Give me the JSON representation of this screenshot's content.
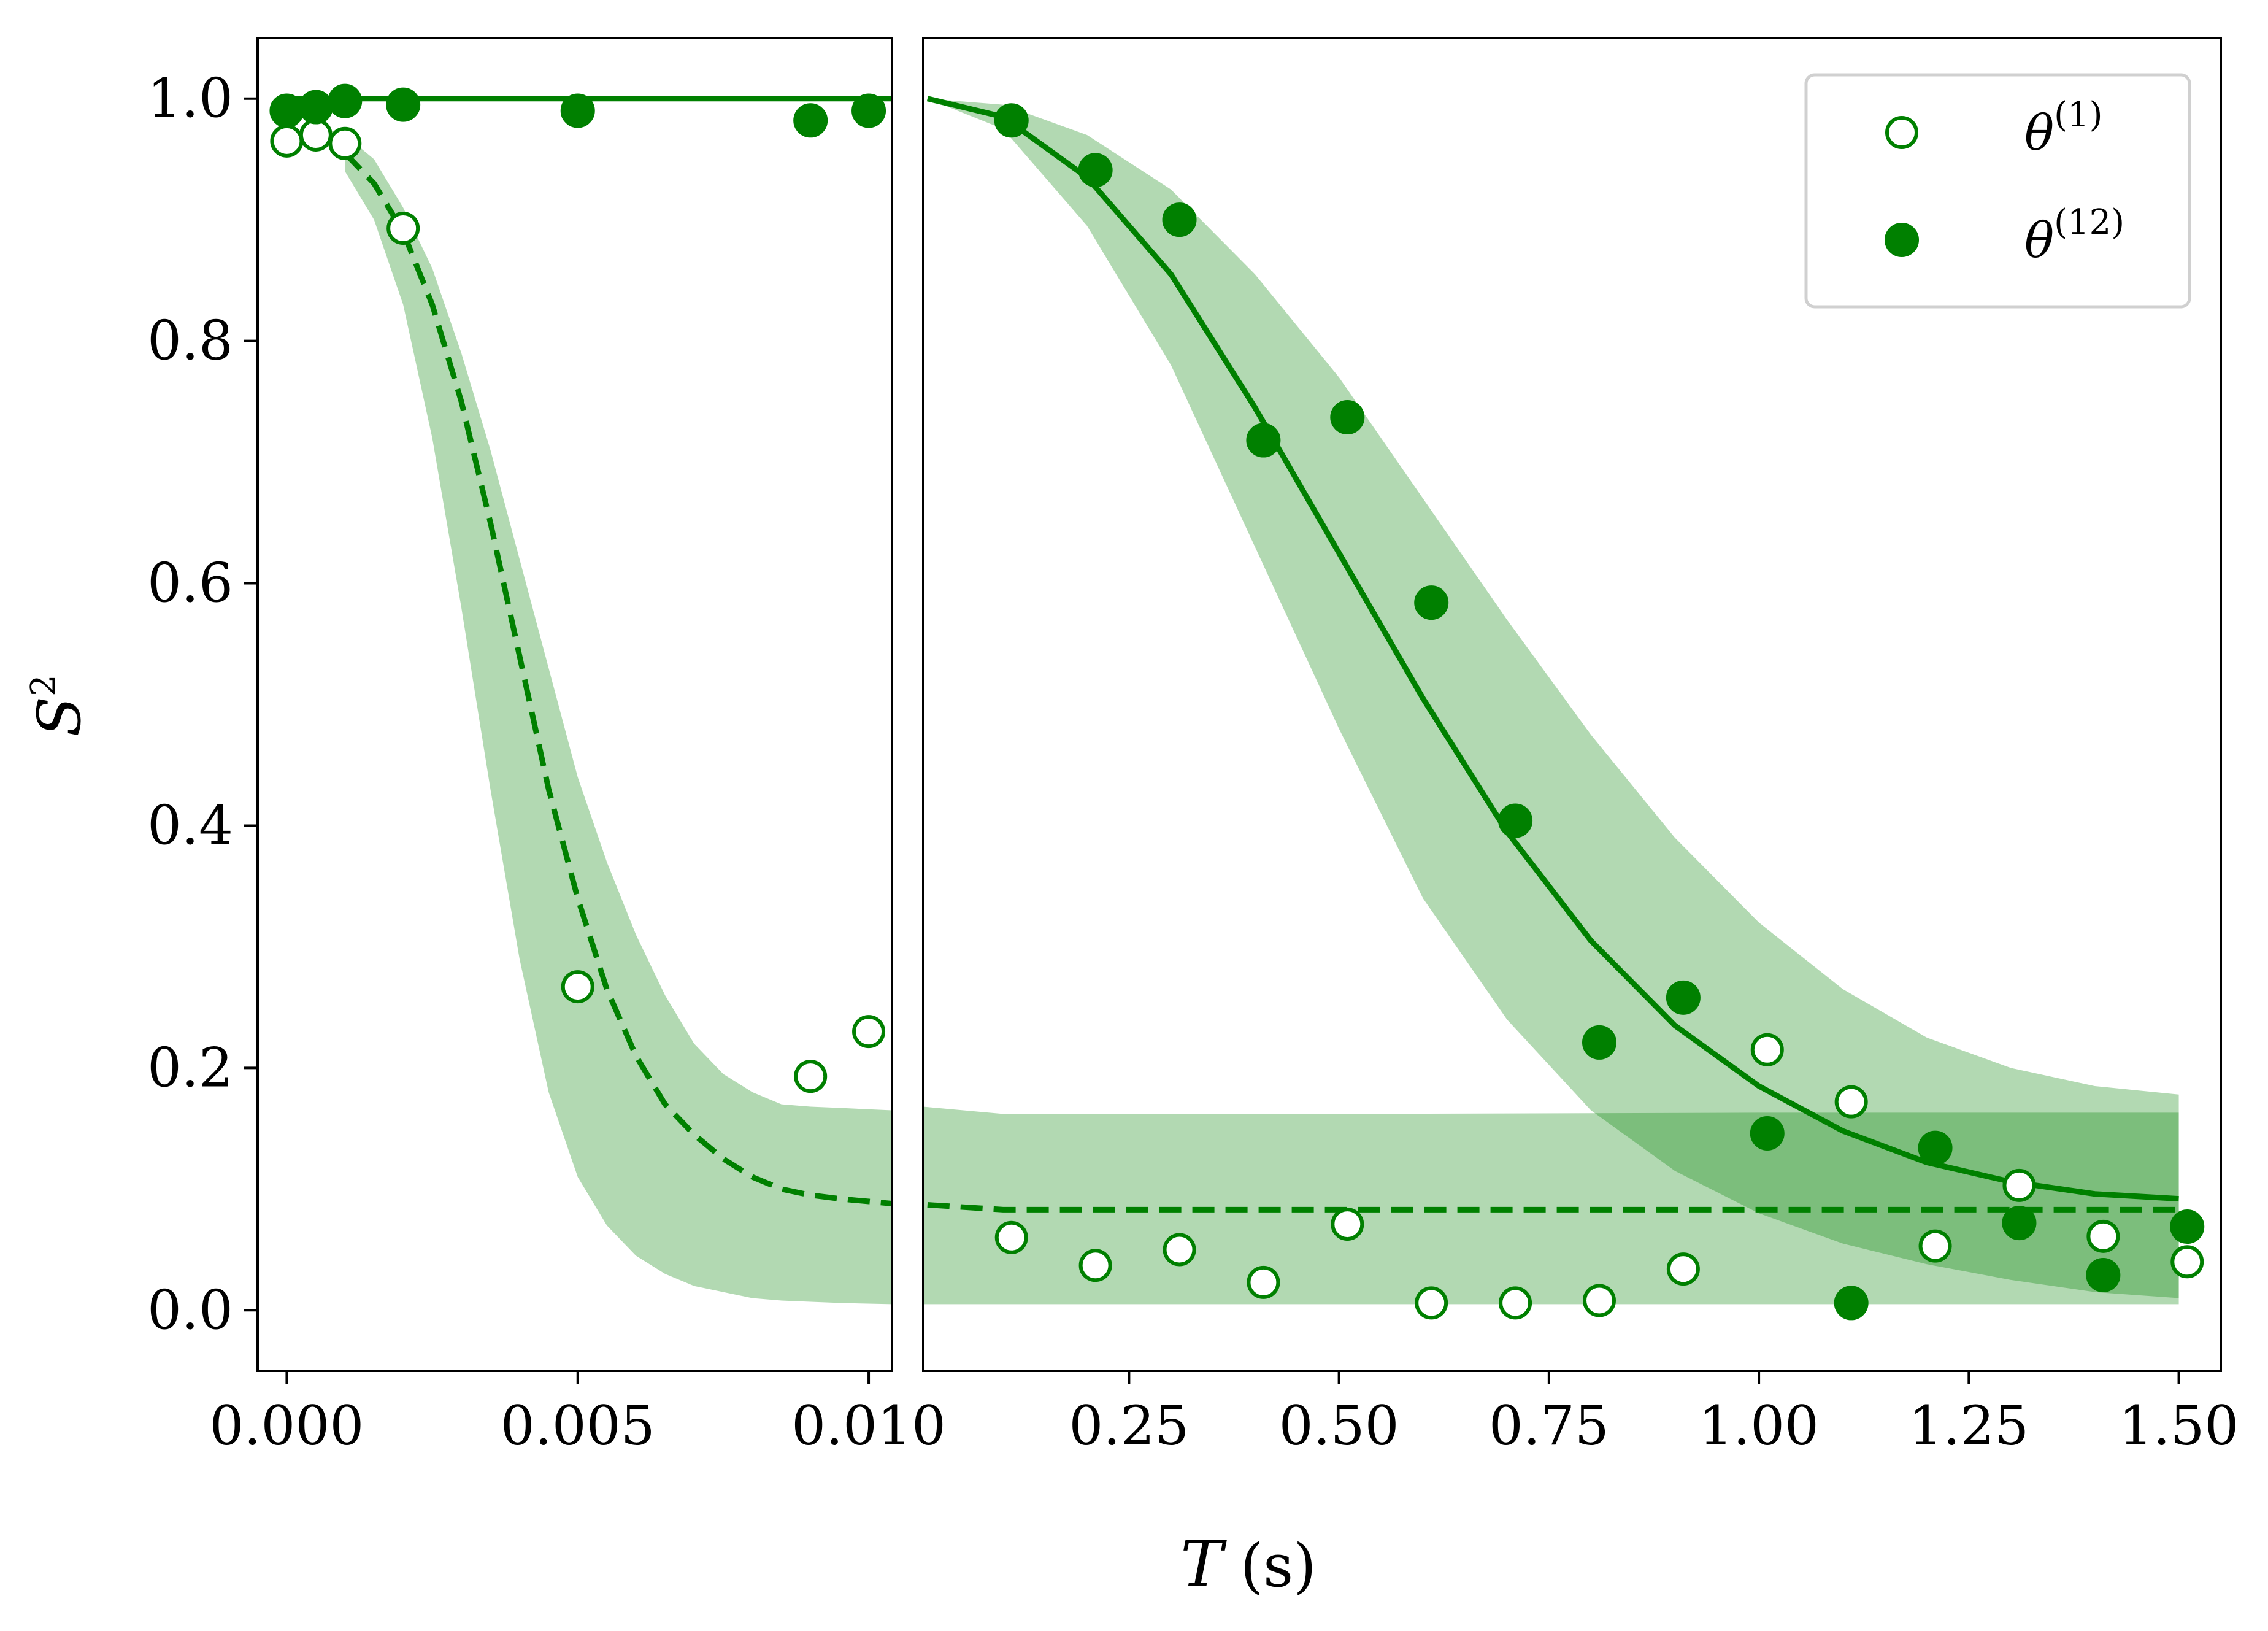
{
  "chart_data": {
    "type": "scatter",
    "ylabel": "S",
    "ylabel_sup": "2",
    "xlabel": "T",
    "xlabel_unit": "(s)",
    "ylim": [
      -0.05,
      1.05
    ],
    "y_ticks": [
      0.0,
      0.2,
      0.4,
      0.6,
      0.8,
      1.0
    ],
    "y_tick_labels": [
      "0.0",
      "0.2",
      "0.4",
      "0.6",
      "0.8",
      "1.0"
    ],
    "color": "#008000",
    "band_color": "#b2d8b2",
    "band_overlap_color": "#80bf80",
    "panels": [
      {
        "name": "left",
        "xlim": [
          -0.0005,
          0.0104
        ],
        "x_ticks": [
          0.0,
          0.005,
          0.01
        ],
        "x_tick_labels": [
          "0.000",
          "0.005",
          "0.010"
        ],
        "series": [
          {
            "name": "θ(1)",
            "marker": "open",
            "x": [
              0.0,
              0.0005,
              0.001,
              0.002,
              0.005,
              0.009,
              0.01
            ],
            "y": [
              0.965,
              0.97,
              0.963,
              0.893,
              0.267,
              0.193,
              0.23
            ]
          },
          {
            "name": "θ(12)",
            "marker": "filled",
            "x": [
              0.0,
              0.0005,
              0.001,
              0.002,
              0.005,
              0.009,
              0.01
            ],
            "y": [
              0.99,
              0.993,
              0.998,
              0.995,
              0.99,
              0.982,
              0.99
            ]
          }
        ],
        "fit_solid": {
          "x": [
            0.0,
            0.0104
          ],
          "y": [
            1.0,
            1.0
          ]
        },
        "fit_dashed": {
          "x": [
            0.001,
            0.0015,
            0.002,
            0.0025,
            0.003,
            0.0035,
            0.004,
            0.0045,
            0.005,
            0.0055,
            0.006,
            0.0065,
            0.007,
            0.0075,
            0.008,
            0.0085,
            0.009,
            0.0095,
            0.0104
          ],
          "y": [
            0.955,
            0.93,
            0.89,
            0.83,
            0.75,
            0.65,
            0.54,
            0.43,
            0.34,
            0.265,
            0.21,
            0.17,
            0.145,
            0.125,
            0.11,
            0.1,
            0.095,
            0.092,
            0.088
          ]
        },
        "band": {
          "x": [
            0.001,
            0.0015,
            0.002,
            0.0025,
            0.003,
            0.0035,
            0.004,
            0.0045,
            0.005,
            0.0055,
            0.006,
            0.0065,
            0.007,
            0.0075,
            0.008,
            0.0085,
            0.009,
            0.0095,
            0.0104
          ],
          "upper": [
            0.97,
            0.95,
            0.91,
            0.86,
            0.79,
            0.71,
            0.62,
            0.53,
            0.44,
            0.37,
            0.31,
            0.26,
            0.22,
            0.195,
            0.18,
            0.17,
            0.168,
            0.167,
            0.165
          ],
          "lower": [
            0.94,
            0.9,
            0.83,
            0.72,
            0.58,
            0.43,
            0.29,
            0.18,
            0.11,
            0.07,
            0.045,
            0.03,
            0.02,
            0.015,
            0.01,
            0.008,
            0.007,
            0.006,
            0.005
          ]
        }
      },
      {
        "name": "right",
        "xlim": [
          0.005,
          1.55
        ],
        "x_ticks": [
          0.25,
          0.5,
          0.75,
          1.0,
          1.25,
          1.5
        ],
        "x_tick_labels": [
          "0.25",
          "0.50",
          "0.75",
          "1.00",
          "1.25",
          "1.50"
        ],
        "series": [
          {
            "name": "θ(1)",
            "marker": "open",
            "x": [
              0.11,
              0.21,
              0.31,
              0.41,
              0.51,
              0.61,
              0.71,
              0.81,
              0.91,
              1.01,
              1.11,
              1.21,
              1.31,
              1.41,
              1.51
            ],
            "y": [
              0.06,
              0.037,
              0.05,
              0.023,
              0.071,
              0.006,
              0.006,
              0.008,
              0.034,
              0.215,
              0.172,
              0.053,
              0.103,
              0.061,
              0.04
            ]
          },
          {
            "name": "θ(12)",
            "marker": "filled",
            "x": [
              0.11,
              0.21,
              0.31,
              0.41,
              0.51,
              0.61,
              0.71,
              0.81,
              0.91,
              1.01,
              1.11,
              1.21,
              1.31,
              1.41,
              1.51
            ],
            "y": [
              0.982,
              0.941,
              0.9,
              0.718,
              0.737,
              0.584,
              0.404,
              0.221,
              0.258,
              0.146,
              0.006,
              0.134,
              0.072,
              0.029,
              0.069
            ]
          }
        ],
        "fit_solid": {
          "x": [
            0.01,
            0.1,
            0.2,
            0.3,
            0.4,
            0.5,
            0.6,
            0.7,
            0.8,
            0.9,
            1.0,
            1.1,
            1.2,
            1.3,
            1.4,
            1.5
          ],
          "y": [
            1.0,
            0.985,
            0.935,
            0.855,
            0.745,
            0.625,
            0.505,
            0.395,
            0.305,
            0.235,
            0.185,
            0.148,
            0.122,
            0.106,
            0.096,
            0.092
          ]
        },
        "fit_dashed": {
          "x": [
            0.01,
            0.1,
            0.5,
            1.0,
            1.5
          ],
          "y": [
            0.087,
            0.083,
            0.083,
            0.083,
            0.083
          ]
        },
        "band_decay": {
          "x": [
            0.01,
            0.1,
            0.2,
            0.3,
            0.4,
            0.5,
            0.6,
            0.7,
            0.8,
            0.9,
            1.0,
            1.1,
            1.2,
            1.3,
            1.4,
            1.5
          ],
          "upper": [
            1.0,
            0.995,
            0.97,
            0.925,
            0.855,
            0.77,
            0.67,
            0.57,
            0.475,
            0.39,
            0.32,
            0.265,
            0.225,
            0.2,
            0.185,
            0.178
          ],
          "lower": [
            1.0,
            0.975,
            0.895,
            0.78,
            0.63,
            0.48,
            0.34,
            0.24,
            0.165,
            0.115,
            0.08,
            0.055,
            0.038,
            0.025,
            0.015,
            0.01
          ]
        },
        "band_flat": {
          "x": [
            0.005,
            0.1,
            0.5,
            1.0,
            1.5
          ],
          "upper": [
            0.168,
            0.162,
            0.162,
            0.163,
            0.163
          ],
          "lower": [
            0.005,
            0.005,
            0.005,
            0.005,
            0.005
          ]
        }
      }
    ],
    "legend": {
      "position": "top-right",
      "entries": [
        {
          "marker": "open",
          "label": "θ",
          "sup": "(1)"
        },
        {
          "marker": "filled",
          "label": "θ",
          "sup": "(12)"
        }
      ]
    }
  }
}
